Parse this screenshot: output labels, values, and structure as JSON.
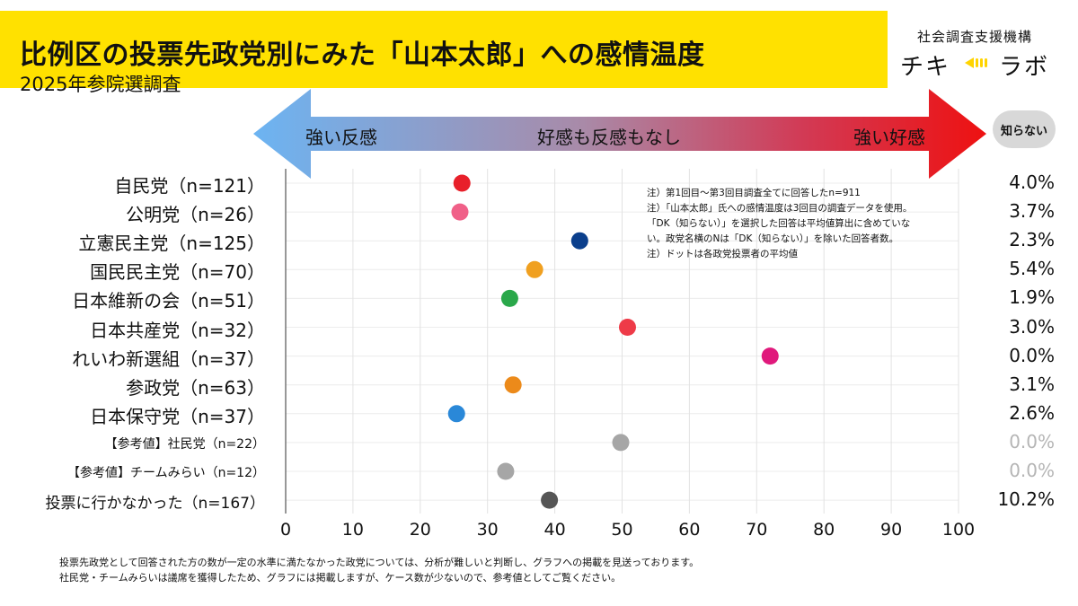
{
  "header": {
    "title": "比例区の投票先政党別にみた「山本太郎」への感情温度",
    "subtitle": "2025年参院選調査",
    "org": "社会調査支援機構",
    "brand_left": "チキ",
    "brand_right": "ラボ",
    "brand_color": "#ffe100"
  },
  "scale": {
    "left_label": "強い反感",
    "middle_label": "好感も反感もなし",
    "right_label": "強い好感",
    "left_color": "#6cb4f2",
    "right_color": "#ee1111"
  },
  "unknown_label": "知らない",
  "notes": [
    "注）第1回目～第3回目調査全てに回答したn=911",
    "注）「山本太郎」氏への感情温度は3回目の調査データを使用。",
    "「DK（知らない）」を選択した回答は平均値算出に含めていな",
    "い。政党名横のNは「DK（知らない）」を除いた回答者数。",
    "注）ドットは各政党投票者の平均値"
  ],
  "footer": [
    "投票先政党として回答された方の数が一定の水準に満たなかった政党については、分析が難しいと判断し、グラフへの掲載を見送っております。",
    "社民党・チームみらいは議席を獲得したため、グラフには掲載しますが、ケース数が少ないので、参考値としてご覧ください。"
  ],
  "chart_data": {
    "type": "scatter",
    "title": "比例区の投票先政党別にみた「山本太郎」への感情温度",
    "xlim": [
      0,
      100
    ],
    "x_ticks": [
      "0",
      "10",
      "20",
      "30",
      "40",
      "50",
      "60",
      "70",
      "80",
      "90",
      "100"
    ],
    "grid": "vertical",
    "rows": [
      {
        "label": "自民党（n=121）",
        "value": 26.2,
        "color": "#e8202a",
        "unknown": "4.0%",
        "reference": false
      },
      {
        "label": "公明党（n=26）",
        "value": 25.9,
        "color": "#f06088",
        "unknown": "3.7%",
        "reference": false
      },
      {
        "label": "立憲民主党（n=125）",
        "value": 43.7,
        "color": "#0b3f8c",
        "unknown": "2.3%",
        "reference": false
      },
      {
        "label": "国民民主党（n=70）",
        "value": 37.0,
        "color": "#f0a020",
        "unknown": "5.4%",
        "reference": false
      },
      {
        "label": "日本維新の会（n=51）",
        "value": 33.3,
        "color": "#2aa84a",
        "unknown": "1.9%",
        "reference": false
      },
      {
        "label": "日本共産党（n=32）",
        "value": 50.8,
        "color": "#ee3b48",
        "unknown": "3.0%",
        "reference": false
      },
      {
        "label": "れいわ新選組（n=37）",
        "value": 72.0,
        "color": "#e0197c",
        "unknown": "0.0%",
        "reference": false
      },
      {
        "label": "参政党（n=63）",
        "value": 33.8,
        "color": "#ec8a1a",
        "unknown": "3.1%",
        "reference": false
      },
      {
        "label": "日本保守党（n=37）",
        "value": 25.4,
        "color": "#2a88d8",
        "unknown": "2.6%",
        "reference": false
      },
      {
        "label": "【参考値】社民党（n=22）",
        "value": 49.8,
        "color": "#a6a6a6",
        "unknown": "0.0%",
        "reference": true
      },
      {
        "label": "【参考値】チームみらい（n=12）",
        "value": 32.7,
        "color": "#a6a6a6",
        "unknown": "0.0%",
        "reference": true
      },
      {
        "label": "投票に行かなかった（n=167）",
        "value": 39.2,
        "color": "#555555",
        "unknown": "10.2%",
        "reference": false
      }
    ]
  }
}
